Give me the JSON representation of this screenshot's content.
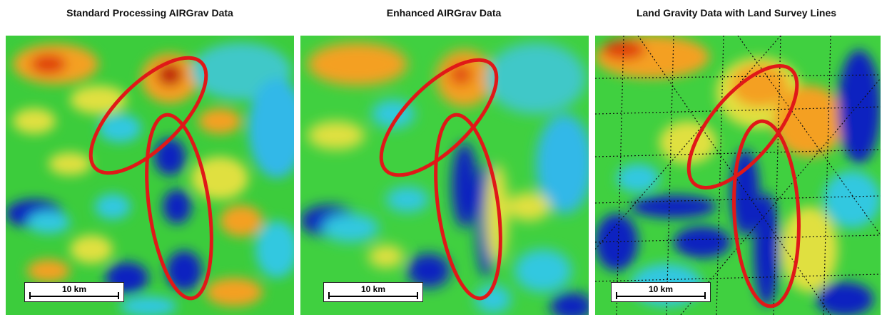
{
  "panels": [
    {
      "title": "Standard Processing AIRGrav Data",
      "scale_label": "10 km"
    },
    {
      "title": "Enhanced AIRGrav Data",
      "scale_label": "10 km"
    },
    {
      "title": "Land Gravity Data with Land Survey Lines",
      "scale_label": "10 km"
    }
  ],
  "colors": {
    "high": "#e04010",
    "mid_high": "#f4a020",
    "mid": "#e0e040",
    "background": "#40d040",
    "low": "#30c8e0",
    "very_low": "#1020c0",
    "highlight_ellipse": "#e01818",
    "survey_lines": "#111111"
  }
}
